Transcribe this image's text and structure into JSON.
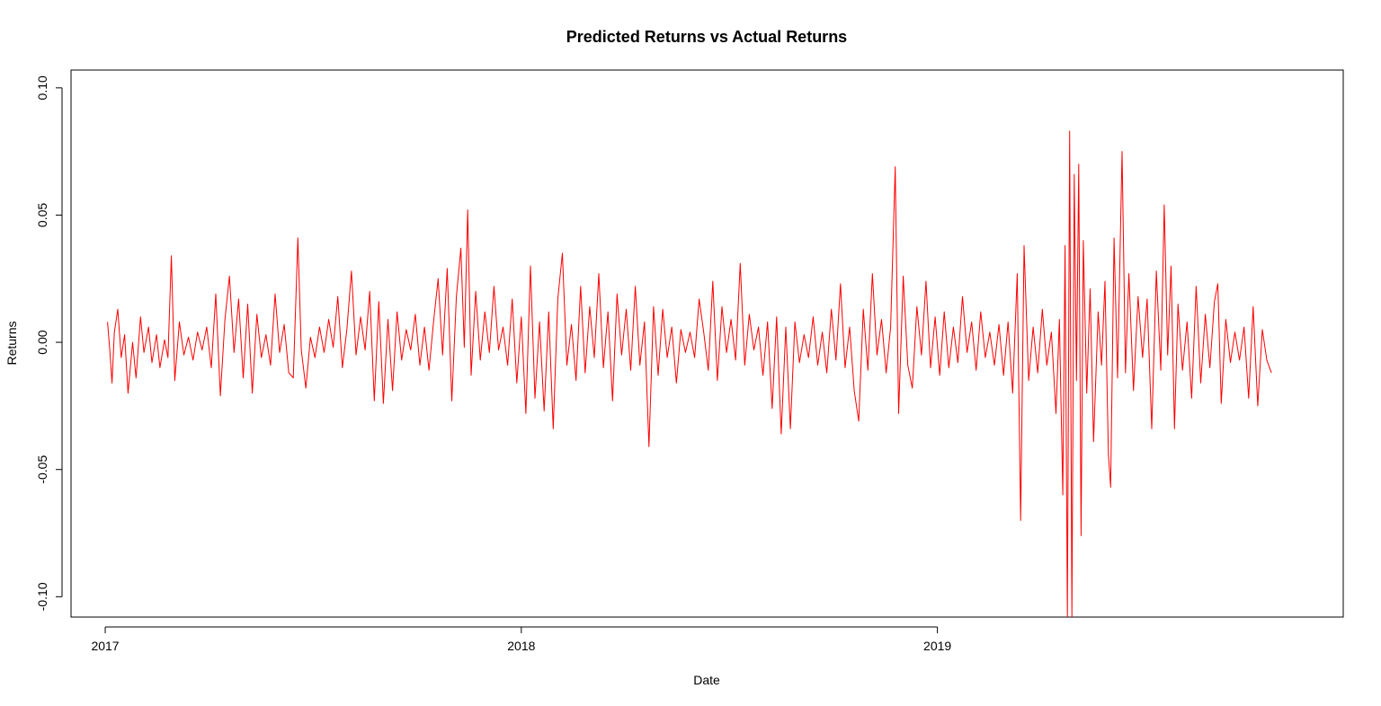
{
  "chart_data": {
    "type": "line",
    "title": "Predicted Returns vs Actual Returns",
    "xlabel": "Date",
    "ylabel": "Returns",
    "x_axis": {
      "type": "date",
      "range": [
        "2016-12-02",
        "2019-12-23"
      ],
      "ticks": [
        "2017-01-01",
        "2018-01-01",
        "2019-01-01"
      ],
      "tick_labels": [
        "2017",
        "2018",
        "2019"
      ]
    },
    "y_axis": {
      "range": [
        -0.108,
        0.107
      ],
      "ticks": [
        -0.1,
        -0.05,
        0,
        0.05,
        0.1
      ],
      "tick_labels": [
        "-0.10",
        "-0.05",
        "0.00",
        "0.05",
        "0.10"
      ]
    },
    "grid": false,
    "legend": "none",
    "series": [
      {
        "color": "#ff0000",
        "points": [
          [
            "2017-01-03",
            0.008
          ],
          [
            "2017-01-05",
            -0.003
          ],
          [
            "2017-01-07",
            -0.016
          ],
          [
            "2017-01-09",
            0.004
          ],
          [
            "2017-01-12",
            0.013
          ],
          [
            "2017-01-15",
            -0.006
          ],
          [
            "2017-01-18",
            0.003
          ],
          [
            "2017-01-21",
            -0.02
          ],
          [
            "2017-01-25",
            0.0
          ],
          [
            "2017-01-28",
            -0.014
          ],
          [
            "2017-02-01",
            0.01
          ],
          [
            "2017-02-04",
            -0.004
          ],
          [
            "2017-02-08",
            0.006
          ],
          [
            "2017-02-11",
            -0.008
          ],
          [
            "2017-02-15",
            0.003
          ],
          [
            "2017-02-18",
            -0.01
          ],
          [
            "2017-02-22",
            0.001
          ],
          [
            "2017-02-25",
            -0.006
          ],
          [
            "2017-02-28",
            0.034
          ],
          [
            "2017-03-03",
            -0.015
          ],
          [
            "2017-03-07",
            0.008
          ],
          [
            "2017-03-11",
            -0.005
          ],
          [
            "2017-03-15",
            0.002
          ],
          [
            "2017-03-19",
            -0.007
          ],
          [
            "2017-03-23",
            0.004
          ],
          [
            "2017-03-27",
            -0.003
          ],
          [
            "2017-03-31",
            0.006
          ],
          [
            "2017-04-04",
            -0.01
          ],
          [
            "2017-04-08",
            0.019
          ],
          [
            "2017-04-12",
            -0.021
          ],
          [
            "2017-04-16",
            0.009
          ],
          [
            "2017-04-20",
            0.026
          ],
          [
            "2017-04-24",
            -0.004
          ],
          [
            "2017-04-28",
            0.017
          ],
          [
            "2017-05-02",
            -0.014
          ],
          [
            "2017-05-06",
            0.015
          ],
          [
            "2017-05-10",
            -0.02
          ],
          [
            "2017-05-14",
            0.011
          ],
          [
            "2017-05-18",
            -0.006
          ],
          [
            "2017-05-22",
            0.003
          ],
          [
            "2017-05-26",
            -0.009
          ],
          [
            "2017-05-30",
            0.019
          ],
          [
            "2017-06-03",
            -0.004
          ],
          [
            "2017-06-07",
            0.007
          ],
          [
            "2017-06-11",
            -0.012
          ],
          [
            "2017-06-15",
            -0.014
          ],
          [
            "2017-06-19",
            0.041
          ],
          [
            "2017-06-22",
            -0.003
          ],
          [
            "2017-06-26",
            -0.018
          ],
          [
            "2017-06-30",
            0.002
          ],
          [
            "2017-07-04",
            -0.006
          ],
          [
            "2017-07-08",
            0.006
          ],
          [
            "2017-07-12",
            -0.004
          ],
          [
            "2017-07-16",
            0.009
          ],
          [
            "2017-07-20",
            -0.002
          ],
          [
            "2017-07-24",
            0.018
          ],
          [
            "2017-07-28",
            -0.01
          ],
          [
            "2017-08-01",
            0.005
          ],
          [
            "2017-08-05",
            0.028
          ],
          [
            "2017-08-09",
            -0.005
          ],
          [
            "2017-08-13",
            0.01
          ],
          [
            "2017-08-17",
            -0.003
          ],
          [
            "2017-08-21",
            0.02
          ],
          [
            "2017-08-25",
            -0.023
          ],
          [
            "2017-08-29",
            0.016
          ],
          [
            "2017-09-02",
            -0.024
          ],
          [
            "2017-09-06",
            0.009
          ],
          [
            "2017-09-10",
            -0.019
          ],
          [
            "2017-09-14",
            0.012
          ],
          [
            "2017-09-18",
            -0.007
          ],
          [
            "2017-09-22",
            0.005
          ],
          [
            "2017-09-26",
            -0.003
          ],
          [
            "2017-09-30",
            0.011
          ],
          [
            "2017-10-04",
            -0.009
          ],
          [
            "2017-10-08",
            0.006
          ],
          [
            "2017-10-12",
            -0.011
          ],
          [
            "2017-10-16",
            0.008
          ],
          [
            "2017-10-20",
            0.025
          ],
          [
            "2017-10-24",
            -0.005
          ],
          [
            "2017-10-28",
            0.029
          ],
          [
            "2017-11-01",
            -0.023
          ],
          [
            "2017-11-05",
            0.018
          ],
          [
            "2017-11-09",
            0.037
          ],
          [
            "2017-11-12",
            -0.002
          ],
          [
            "2017-11-15",
            0.052
          ],
          [
            "2017-11-18",
            -0.013
          ],
          [
            "2017-11-22",
            0.02
          ],
          [
            "2017-11-26",
            -0.007
          ],
          [
            "2017-11-30",
            0.012
          ],
          [
            "2017-12-04",
            -0.004
          ],
          [
            "2017-12-08",
            0.022
          ],
          [
            "2017-12-12",
            -0.003
          ],
          [
            "2017-12-16",
            0.006
          ],
          [
            "2017-12-20",
            -0.009
          ],
          [
            "2017-12-24",
            0.017
          ],
          [
            "2017-12-28",
            -0.016
          ],
          [
            "2018-01-01",
            0.01
          ],
          [
            "2018-01-05",
            -0.028
          ],
          [
            "2018-01-09",
            0.03
          ],
          [
            "2018-01-13",
            -0.022
          ],
          [
            "2018-01-17",
            0.008
          ],
          [
            "2018-01-21",
            -0.027
          ],
          [
            "2018-01-25",
            0.012
          ],
          [
            "2018-01-29",
            -0.034
          ],
          [
            "2018-02-02",
            0.017
          ],
          [
            "2018-02-06",
            0.035
          ],
          [
            "2018-02-10",
            -0.009
          ],
          [
            "2018-02-14",
            0.007
          ],
          [
            "2018-02-18",
            -0.015
          ],
          [
            "2018-02-22",
            0.022
          ],
          [
            "2018-02-26",
            -0.012
          ],
          [
            "2018-03-02",
            0.014
          ],
          [
            "2018-03-06",
            -0.006
          ],
          [
            "2018-03-10",
            0.027
          ],
          [
            "2018-03-14",
            -0.01
          ],
          [
            "2018-03-18",
            0.012
          ],
          [
            "2018-03-22",
            -0.023
          ],
          [
            "2018-03-26",
            0.019
          ],
          [
            "2018-03-30",
            -0.005
          ],
          [
            "2018-04-03",
            0.013
          ],
          [
            "2018-04-07",
            -0.011
          ],
          [
            "2018-04-11",
            0.022
          ],
          [
            "2018-04-15",
            -0.009
          ],
          [
            "2018-04-19",
            0.008
          ],
          [
            "2018-04-23",
            -0.041
          ],
          [
            "2018-04-27",
            0.014
          ],
          [
            "2018-05-01",
            -0.013
          ],
          [
            "2018-05-05",
            0.013
          ],
          [
            "2018-05-09",
            -0.006
          ],
          [
            "2018-05-13",
            0.006
          ],
          [
            "2018-05-17",
            -0.016
          ],
          [
            "2018-05-21",
            0.005
          ],
          [
            "2018-05-25",
            -0.004
          ],
          [
            "2018-05-29",
            0.004
          ],
          [
            "2018-06-02",
            -0.006
          ],
          [
            "2018-06-06",
            0.017
          ],
          [
            "2018-06-10",
            0.004
          ],
          [
            "2018-06-14",
            -0.011
          ],
          [
            "2018-06-18",
            0.024
          ],
          [
            "2018-06-22",
            -0.015
          ],
          [
            "2018-06-26",
            0.014
          ],
          [
            "2018-06-30",
            -0.004
          ],
          [
            "2018-07-04",
            0.009
          ],
          [
            "2018-07-08",
            -0.007
          ],
          [
            "2018-07-12",
            0.031
          ],
          [
            "2018-07-16",
            -0.009
          ],
          [
            "2018-07-20",
            0.011
          ],
          [
            "2018-07-24",
            -0.003
          ],
          [
            "2018-07-28",
            0.006
          ],
          [
            "2018-08-01",
            -0.013
          ],
          [
            "2018-08-05",
            0.008
          ],
          [
            "2018-08-09",
            -0.026
          ],
          [
            "2018-08-13",
            0.01
          ],
          [
            "2018-08-17",
            -0.036
          ],
          [
            "2018-08-21",
            0.006
          ],
          [
            "2018-08-25",
            -0.034
          ],
          [
            "2018-08-29",
            0.008
          ],
          [
            "2018-09-02",
            -0.008
          ],
          [
            "2018-09-06",
            0.003
          ],
          [
            "2018-09-10",
            -0.006
          ],
          [
            "2018-09-14",
            0.01
          ],
          [
            "2018-09-18",
            -0.009
          ],
          [
            "2018-09-22",
            0.004
          ],
          [
            "2018-09-26",
            -0.012
          ],
          [
            "2018-09-30",
            0.013
          ],
          [
            "2018-10-04",
            -0.007
          ],
          [
            "2018-10-08",
            0.023
          ],
          [
            "2018-10-12",
            -0.01
          ],
          [
            "2018-10-16",
            0.006
          ],
          [
            "2018-10-20",
            -0.019
          ],
          [
            "2018-10-24",
            -0.031
          ],
          [
            "2018-10-28",
            0.013
          ],
          [
            "2018-11-01",
            -0.011
          ],
          [
            "2018-11-05",
            0.027
          ],
          [
            "2018-11-09",
            -0.005
          ],
          [
            "2018-11-13",
            0.009
          ],
          [
            "2018-11-17",
            -0.012
          ],
          [
            "2018-11-21",
            0.006
          ],
          [
            "2018-11-25",
            0.069
          ],
          [
            "2018-11-28",
            -0.028
          ],
          [
            "2018-12-02",
            0.026
          ],
          [
            "2018-12-06",
            -0.009
          ],
          [
            "2018-12-10",
            -0.018
          ],
          [
            "2018-12-14",
            0.014
          ],
          [
            "2018-12-18",
            -0.005
          ],
          [
            "2018-12-22",
            0.024
          ],
          [
            "2018-12-26",
            -0.01
          ],
          [
            "2018-12-30",
            0.01
          ],
          [
            "2019-01-03",
            -0.013
          ],
          [
            "2019-01-07",
            0.012
          ],
          [
            "2019-01-11",
            -0.01
          ],
          [
            "2019-01-15",
            0.006
          ],
          [
            "2019-01-19",
            -0.008
          ],
          [
            "2019-01-23",
            0.018
          ],
          [
            "2019-01-27",
            -0.004
          ],
          [
            "2019-01-31",
            0.008
          ],
          [
            "2019-02-04",
            -0.011
          ],
          [
            "2019-02-08",
            0.012
          ],
          [
            "2019-02-12",
            -0.006
          ],
          [
            "2019-02-16",
            0.004
          ],
          [
            "2019-02-20",
            -0.009
          ],
          [
            "2019-02-24",
            0.007
          ],
          [
            "2019-02-28",
            -0.013
          ],
          [
            "2019-03-04",
            0.008
          ],
          [
            "2019-03-08",
            -0.02
          ],
          [
            "2019-03-12",
            0.027
          ],
          [
            "2019-03-15",
            -0.07
          ],
          [
            "2019-03-18",
            0.038
          ],
          [
            "2019-03-22",
            -0.015
          ],
          [
            "2019-03-26",
            0.006
          ],
          [
            "2019-03-30",
            -0.012
          ],
          [
            "2019-04-03",
            0.013
          ],
          [
            "2019-04-07",
            -0.009
          ],
          [
            "2019-04-11",
            0.004
          ],
          [
            "2019-04-15",
            -0.028
          ],
          [
            "2019-04-18",
            0.009
          ],
          [
            "2019-04-21",
            -0.06
          ],
          [
            "2019-04-23",
            0.038
          ],
          [
            "2019-04-25",
            -0.108
          ],
          [
            "2019-04-27",
            0.083
          ],
          [
            "2019-04-29",
            -0.108
          ],
          [
            "2019-05-01",
            0.066
          ],
          [
            "2019-05-03",
            -0.015
          ],
          [
            "2019-05-05",
            0.07
          ],
          [
            "2019-05-07",
            -0.076
          ],
          [
            "2019-05-09",
            0.04
          ],
          [
            "2019-05-12",
            -0.02
          ],
          [
            "2019-05-15",
            0.021
          ],
          [
            "2019-05-18",
            -0.039
          ],
          [
            "2019-05-22",
            0.012
          ],
          [
            "2019-05-25",
            -0.009
          ],
          [
            "2019-05-28",
            0.024
          ],
          [
            "2019-05-31",
            -0.044
          ],
          [
            "2019-06-02",
            -0.057
          ],
          [
            "2019-06-05",
            0.041
          ],
          [
            "2019-06-08",
            -0.014
          ],
          [
            "2019-06-12",
            0.075
          ],
          [
            "2019-06-15",
            -0.012
          ],
          [
            "2019-06-18",
            0.027
          ],
          [
            "2019-06-22",
            -0.019
          ],
          [
            "2019-06-26",
            0.018
          ],
          [
            "2019-06-30",
            -0.006
          ],
          [
            "2019-07-04",
            0.017
          ],
          [
            "2019-07-08",
            -0.034
          ],
          [
            "2019-07-12",
            0.028
          ],
          [
            "2019-07-16",
            -0.011
          ],
          [
            "2019-07-19",
            0.054
          ],
          [
            "2019-07-22",
            -0.005
          ],
          [
            "2019-07-25",
            0.03
          ],
          [
            "2019-07-28",
            -0.034
          ],
          [
            "2019-07-31",
            0.015
          ],
          [
            "2019-08-04",
            -0.011
          ],
          [
            "2019-08-08",
            0.008
          ],
          [
            "2019-08-12",
            -0.022
          ],
          [
            "2019-08-16",
            0.022
          ],
          [
            "2019-08-20",
            -0.016
          ],
          [
            "2019-08-24",
            0.011
          ],
          [
            "2019-08-28",
            -0.01
          ],
          [
            "2019-09-01",
            0.016
          ],
          [
            "2019-09-04",
            0.023
          ],
          [
            "2019-09-07",
            -0.024
          ],
          [
            "2019-09-11",
            0.009
          ],
          [
            "2019-09-15",
            -0.008
          ],
          [
            "2019-09-19",
            0.004
          ],
          [
            "2019-09-23",
            -0.007
          ],
          [
            "2019-09-27",
            0.006
          ],
          [
            "2019-10-01",
            -0.022
          ],
          [
            "2019-10-05",
            0.014
          ],
          [
            "2019-10-09",
            -0.025
          ],
          [
            "2019-10-13",
            0.005
          ],
          [
            "2019-10-17",
            -0.007
          ],
          [
            "2019-10-21",
            -0.012
          ]
        ]
      }
    ]
  }
}
